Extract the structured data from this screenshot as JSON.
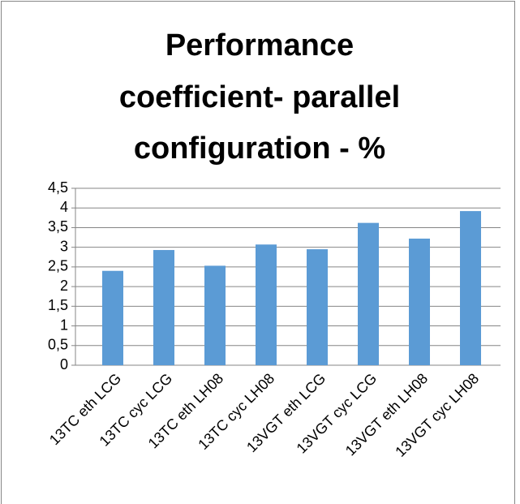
{
  "chart_data": {
    "type": "bar",
    "title": [
      "Performance",
      "coefficient- parallel",
      "configuration - %"
    ],
    "categories": [
      "13TC eth LCG",
      "13TC cyc LCG",
      "13TC eth LH08",
      "13TC cyc LH08",
      "13VGT eth LCG",
      "13VGT cyc LCG",
      "13VGT eth LH08",
      "13VGT cyc LH08"
    ],
    "values": [
      2.4,
      2.93,
      2.53,
      3.07,
      2.95,
      3.62,
      3.22,
      3.92
    ],
    "color": "#5b9bd5",
    "ylim": [
      0,
      4.5
    ],
    "yticks": [
      0,
      {
        "value": 0.5,
        "label": "0,5"
      },
      1,
      {
        "value": 1.5,
        "label": "1,5"
      },
      2,
      {
        "value": 2.5,
        "label": "2,5"
      },
      3,
      {
        "value": 3.5,
        "label": "3,5"
      },
      4,
      {
        "value": 4.5,
        "label": "4,5"
      }
    ],
    "grid": true
  }
}
